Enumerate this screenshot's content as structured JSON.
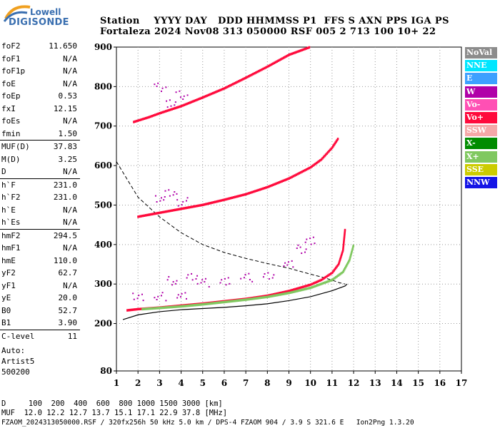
{
  "logo": {
    "line1": "Lowell",
    "line2": "DIGISONDE"
  },
  "header": {
    "row1": "Station    YYYY DAY   DDD HHMMSS P1  FFS S AXN PPS IGA PS",
    "row2": "Fortaleza 2024 Nov08 313 050000 RSF 005 2 713 100 10+ 22"
  },
  "params": [
    {
      "k": "foF2",
      "v": "11.650"
    },
    {
      "k": "foF1",
      "v": "N/A"
    },
    {
      "k": "foF1p",
      "v": "N/A"
    },
    {
      "k": "foE",
      "v": "N/A"
    },
    {
      "k": "foEp",
      "v": "0.53"
    },
    {
      "k": "fxI",
      "v": "12.15"
    },
    {
      "k": "foEs",
      "v": "N/A"
    },
    {
      "k": "fmin",
      "v": "1.50"
    },
    {
      "k": "MUF(D)",
      "v": "37.83"
    },
    {
      "k": "M(D)",
      "v": "3.25"
    },
    {
      "k": "D",
      "v": "N/A"
    },
    {
      "k": "h`F",
      "v": "231.0"
    },
    {
      "k": "h`F2",
      "v": "231.0"
    },
    {
      "k": "h`E",
      "v": "N/A"
    },
    {
      "k": "h`Es",
      "v": "N/A"
    },
    {
      "k": "hmF2",
      "v": "294.5"
    },
    {
      "k": "hmF1",
      "v": "N/A"
    },
    {
      "k": "hmE",
      "v": "110.0"
    },
    {
      "k": "yF2",
      "v": "62.7"
    },
    {
      "k": "yF1",
      "v": "N/A"
    },
    {
      "k": "yE",
      "v": "20.0"
    },
    {
      "k": "B0",
      "v": "52.7"
    },
    {
      "k": "B1",
      "v": "3.90"
    },
    {
      "k": "C-level",
      "v": "11"
    }
  ],
  "auto": {
    "line1": "Auto:",
    "line2": "Artist5",
    "line3": "500200"
  },
  "bottom": {
    "row1": "D     100  200  400  600  800 1000 1500 3000 [km]",
    "row2": "MUF  12.0 12.2 12.7 13.7 15.1 17.1 22.9 37.8 [MHz]",
    "row3": "FZAOM_2024313050000.RSF / 320fx256h 50 kHz 5.0 km / DPS-4 FZAOM 904 / 3.9 S 321.6 E   Ion2Png 1.3.20"
  },
  "legend": [
    {
      "label": "NoVal",
      "color": "#8c8c8c"
    },
    {
      "label": "NNE",
      "color": "#00e6ff"
    },
    {
      "label": "E",
      "color": "#3da0ff"
    },
    {
      "label": "W",
      "color": "#b000a8"
    },
    {
      "label": "Vo-",
      "color": "#ff50b4"
    },
    {
      "label": "Vo+",
      "color": "#ff0a3c"
    },
    {
      "label": "SSW",
      "color": "#f5a8a8"
    },
    {
      "label": "X-",
      "color": "#008c00"
    },
    {
      "label": "X+",
      "color": "#80c860"
    },
    {
      "label": "SSE",
      "color": "#cccc00"
    },
    {
      "label": "NNW",
      "color": "#1414e6"
    }
  ],
  "chart_data": {
    "type": "scatter",
    "xlim": [
      1,
      17
    ],
    "ylim": [
      80,
      900
    ],
    "x_ticks": [
      "1",
      "2",
      "3",
      "4",
      "5",
      "6",
      "7",
      "8",
      "9",
      "10",
      "11",
      "12",
      "13",
      "14",
      "15",
      "16",
      "17"
    ],
    "y_ticks": [
      {
        "label": "900",
        "value": 900
      },
      {
        "label": "800",
        "value": 800
      },
      {
        "label": "700",
        "value": 700
      },
      {
        "label": "600",
        "value": 600
      },
      {
        "label": "500",
        "value": 500
      },
      {
        "label": "400",
        "value": 400
      },
      {
        "label": "300",
        "value": 300
      },
      {
        "label": "200",
        "value": 200
      },
      {
        "label": "80",
        "value": 80
      }
    ],
    "grid": "dotted",
    "series": [
      {
        "mode": "O-trace F2 (Vo+)",
        "color": "#ff0a3c",
        "points": [
          [
            1.5,
            233
          ],
          [
            2,
            236
          ],
          [
            3,
            240
          ],
          [
            4,
            245
          ],
          [
            5,
            250
          ],
          [
            6,
            256
          ],
          [
            7,
            262
          ],
          [
            8,
            270
          ],
          [
            9,
            282
          ],
          [
            10,
            298
          ],
          [
            10.5,
            310
          ],
          [
            11,
            328
          ],
          [
            11.3,
            350
          ],
          [
            11.5,
            385
          ],
          [
            11.6,
            440
          ]
        ]
      },
      {
        "mode": "X-trace F2 (X+)",
        "color": "#80c860",
        "points": [
          [
            2.2,
            236
          ],
          [
            3,
            239
          ],
          [
            4,
            243
          ],
          [
            5,
            248
          ],
          [
            6,
            254
          ],
          [
            7,
            260
          ],
          [
            8,
            267
          ],
          [
            9,
            277
          ],
          [
            10,
            290
          ],
          [
            11,
            310
          ],
          [
            11.5,
            330
          ],
          [
            11.8,
            360
          ],
          [
            12,
            400
          ]
        ]
      },
      {
        "mode": "2nd hop (Vo+)",
        "color": "#ff0a3c",
        "points": [
          [
            2,
            470
          ],
          [
            3,
            480
          ],
          [
            4,
            490
          ],
          [
            5,
            500
          ],
          [
            6,
            513
          ],
          [
            7,
            527
          ],
          [
            8,
            545
          ],
          [
            9,
            567
          ],
          [
            10,
            595
          ],
          [
            10.5,
            615
          ],
          [
            11,
            645
          ],
          [
            11.3,
            670
          ]
        ]
      },
      {
        "mode": "3rd hop (Vo+)",
        "color": "#ff0a3c",
        "points": [
          [
            1.8,
            710
          ],
          [
            2.5,
            722
          ],
          [
            3,
            732
          ],
          [
            4,
            750
          ],
          [
            5,
            772
          ],
          [
            6,
            795
          ],
          [
            7,
            822
          ],
          [
            8,
            850
          ],
          [
            9,
            880
          ],
          [
            10,
            900
          ]
        ]
      },
      {
        "mode": "Spread (W)",
        "color": "#b000a8",
        "points": [
          [
            2,
            268
          ],
          [
            3,
            270
          ],
          [
            4,
            272
          ],
          [
            5,
            305
          ],
          [
            6,
            310
          ],
          [
            7,
            318
          ],
          [
            8,
            325
          ],
          [
            9,
            350
          ],
          [
            9.5,
            390
          ],
          [
            10,
            410
          ],
          [
            3.5,
            310
          ],
          [
            4.5,
            320
          ],
          [
            3,
            800
          ],
          [
            3.5,
            760
          ],
          [
            4,
            780
          ],
          [
            3,
            520
          ],
          [
            3.5,
            530
          ],
          [
            4,
            510
          ]
        ]
      }
    ],
    "profile": [
      [
        1.3,
        210
      ],
      [
        2,
        222
      ],
      [
        3,
        230
      ],
      [
        4,
        235
      ],
      [
        5,
        238
      ],
      [
        6,
        241
      ],
      [
        7,
        245
      ],
      [
        8,
        250
      ],
      [
        9,
        258
      ],
      [
        10,
        268
      ],
      [
        11,
        283
      ],
      [
        11.6,
        295
      ],
      [
        11.7,
        300
      ]
    ],
    "muf_curve": [
      [
        1,
        610
      ],
      [
        2,
        520
      ],
      [
        3,
        470
      ],
      [
        4,
        430
      ],
      [
        5,
        400
      ],
      [
        6,
        380
      ],
      [
        7,
        365
      ],
      [
        8,
        352
      ],
      [
        9,
        340
      ],
      [
        10,
        325
      ],
      [
        10.5,
        318
      ],
      [
        11,
        310
      ],
      [
        11.3,
        304
      ],
      [
        11.6,
        300
      ]
    ]
  }
}
